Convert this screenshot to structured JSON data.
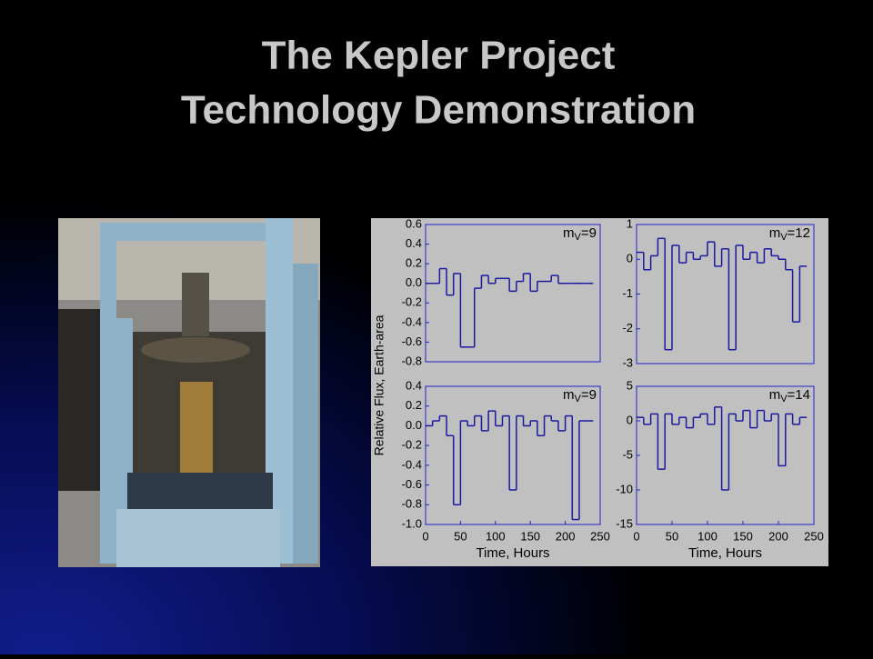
{
  "title": [
    "The Kepler Project",
    "Technology Demonstration"
  ],
  "ylabel": "Relative Flux, Earth-area",
  "chart_data": [
    {
      "type": "step",
      "annotation": [
        "m",
        "V",
        "=9"
      ],
      "color": "#1a1aa0",
      "x": [
        0,
        10,
        20,
        30,
        40,
        50,
        60,
        70,
        80,
        90,
        100,
        110,
        120,
        130,
        140,
        150,
        160,
        170,
        180,
        190,
        200,
        210,
        220,
        230
      ],
      "values": [
        0,
        0,
        0.15,
        -0.12,
        0.1,
        -0.65,
        -0.65,
        -0.05,
        0.08,
        0,
        0.05,
        0.05,
        -0.08,
        0.02,
        0.1,
        -0.08,
        0.02,
        0.02,
        0.08,
        0,
        0,
        0,
        0,
        0
      ],
      "xlim": [
        0,
        250
      ],
      "ylim": [
        -0.8,
        0.6
      ],
      "yticks": [
        -0.8,
        -0.6,
        -0.4,
        -0.2,
        {
          "value": 0,
          "label": "0.0"
        },
        0.2,
        0.4,
        0.6
      ]
    },
    {
      "type": "step",
      "annotation": [
        "m",
        "V",
        "=12"
      ],
      "color": "#1a1aa0",
      "x": [
        0,
        10,
        20,
        30,
        40,
        50,
        60,
        70,
        80,
        90,
        100,
        110,
        120,
        130,
        140,
        150,
        160,
        170,
        180,
        190,
        200,
        210,
        220,
        230
      ],
      "values": [
        0.2,
        -0.3,
        0.1,
        0.6,
        -2.6,
        0.4,
        -0.1,
        0.2,
        0,
        0.1,
        0.5,
        -0.2,
        0.3,
        -2.6,
        0.4,
        0,
        0.2,
        -0.1,
        0.3,
        0.1,
        0,
        -0.3,
        -1.8,
        -0.2
      ],
      "xlim": [
        0,
        250
      ],
      "ylim": [
        -3,
        1
      ],
      "yticks": [
        -3,
        -2,
        -1,
        0,
        1
      ]
    },
    {
      "type": "step",
      "annotation": [
        "m",
        "V",
        "=9"
      ],
      "color": "#1a1aa0",
      "xlabel": "Time, Hours",
      "x": [
        0,
        10,
        20,
        30,
        40,
        50,
        60,
        70,
        80,
        90,
        100,
        110,
        120,
        130,
        140,
        150,
        160,
        170,
        180,
        190,
        200,
        210,
        220,
        230
      ],
      "values": [
        0,
        0.05,
        0.1,
        -0.1,
        -0.8,
        0.05,
        0,
        0.1,
        -0.05,
        0.15,
        0,
        0.1,
        -0.65,
        0.1,
        0,
        0.05,
        -0.1,
        0.1,
        0.05,
        -0.05,
        0.1,
        -0.95,
        0.05,
        0.05
      ],
      "xlim": [
        0,
        250
      ],
      "xticks": [
        0,
        50,
        100,
        150,
        200,
        250
      ],
      "ylim": [
        -1.0,
        0.4
      ],
      "yticks": [
        {
          "value": -1,
          "label": "-1.0"
        },
        -0.8,
        -0.6,
        -0.4,
        -0.2,
        {
          "value": 0,
          "label": "0.0"
        },
        0.2,
        0.4
      ]
    },
    {
      "type": "step",
      "annotation": [
        "m",
        "V",
        "=14"
      ],
      "color": "#1a1aa0",
      "xlabel": "Time, Hours",
      "x": [
        0,
        10,
        20,
        30,
        40,
        50,
        60,
        70,
        80,
        90,
        100,
        110,
        120,
        130,
        140,
        150,
        160,
        170,
        180,
        190,
        200,
        210,
        220,
        230
      ],
      "values": [
        0.5,
        -0.5,
        1,
        -7,
        1,
        -0.5,
        0.5,
        -1,
        0.5,
        1,
        -0.5,
        2,
        -10,
        1,
        0,
        1.5,
        -1,
        1.5,
        0,
        1,
        -6.5,
        1,
        -0.5,
        0.5
      ],
      "xlim": [
        0,
        250
      ],
      "xticks": [
        0,
        50,
        100,
        150,
        200,
        250
      ],
      "ylim": [
        -15,
        5
      ],
      "yticks": [
        -15,
        -10,
        -5,
        0,
        5
      ]
    }
  ]
}
